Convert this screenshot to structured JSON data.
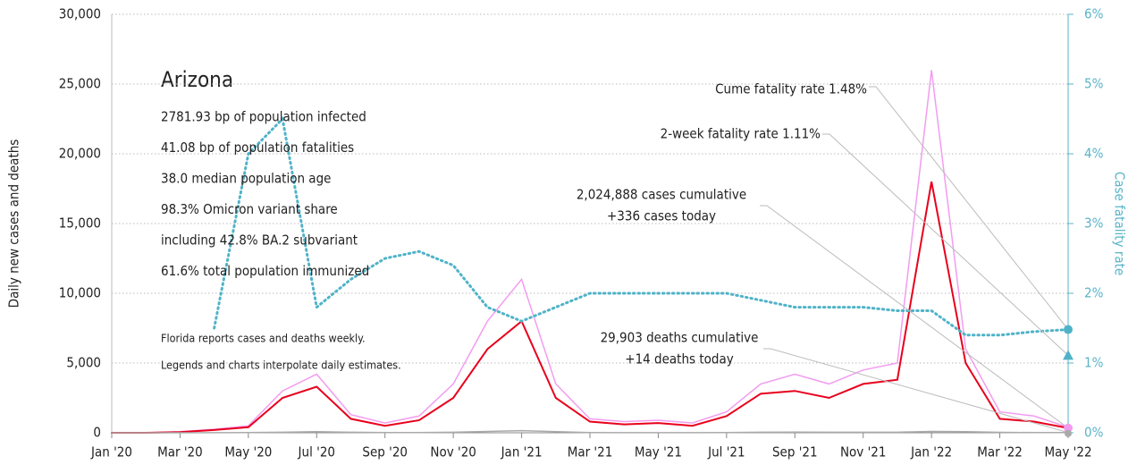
{
  "chart_data": {
    "type": "line",
    "x": [
      "2020-01",
      "2020-02",
      "2020-03",
      "2020-04",
      "2020-05",
      "2020-06",
      "2020-07",
      "2020-08",
      "2020-09",
      "2020-10",
      "2020-11",
      "2020-12",
      "2021-01",
      "2021-02",
      "2021-03",
      "2021-04",
      "2021-05",
      "2021-06",
      "2021-07",
      "2021-08",
      "2021-09",
      "2021-10",
      "2021-11",
      "2021-12",
      "2022-01",
      "2022-02",
      "2022-03",
      "2022-04",
      "2022-05"
    ],
    "series": [
      {
        "color": "#f29cf0",
        "values": [
          0,
          0,
          80,
          250,
          500,
          3000,
          4200,
          1300,
          700,
          1200,
          3500,
          8000,
          11000,
          3500,
          1000,
          800,
          900,
          700,
          1500,
          3500,
          4200,
          3500,
          4500,
          5000,
          26000,
          6000,
          1500,
          1200,
          400
        ]
      },
      {
        "color": "#e8001c",
        "values": [
          0,
          0,
          50,
          200,
          400,
          2500,
          3300,
          1000,
          500,
          900,
          2500,
          6000,
          8000,
          2500,
          800,
          600,
          700,
          500,
          1200,
          2800,
          3000,
          2500,
          3500,
          3800,
          18000,
          5000,
          1000,
          800,
          336
        ]
      },
      {
        "color": "#aaaaaa",
        "values": [
          0,
          0,
          2,
          10,
          15,
          40,
          80,
          40,
          15,
          20,
          40,
          100,
          150,
          80,
          20,
          10,
          10,
          8,
          15,
          40,
          50,
          40,
          40,
          40,
          100,
          80,
          30,
          15,
          14
        ]
      },
      {
        "color": "#4fb3c8",
        "axis": "y2",
        "dotted": true,
        "values": [
          null,
          null,
          null,
          1.5,
          4.0,
          4.5,
          1.8,
          2.2,
          2.5,
          2.6,
          2.4,
          1.8,
          1.6,
          1.8,
          2.0,
          2.0,
          2.0,
          2.0,
          2.0,
          1.9,
          1.8,
          1.8,
          1.8,
          1.75,
          1.75,
          1.4,
          1.4,
          1.45,
          1.48
        ]
      }
    ],
    "two_week_fatality_rate": 1.11,
    "xticks": [
      {
        "value": "2020-01",
        "label": "Jan '20"
      },
      {
        "value": "2020-03",
        "label": "Mar '20"
      },
      {
        "value": "2020-05",
        "label": "May '20"
      },
      {
        "value": "2020-07",
        "label": "Jul '20"
      },
      {
        "value": "2020-09",
        "label": "Sep '20"
      },
      {
        "value": "2020-11",
        "label": "Nov '20"
      },
      {
        "value": "2021-01",
        "label": "Jan '21"
      },
      {
        "value": "2021-03",
        "label": "Mar '21"
      },
      {
        "value": "2021-05",
        "label": "May '21"
      },
      {
        "value": "2021-07",
        "label": "Jul '21"
      },
      {
        "value": "2021-09",
        "label": "Sep '21"
      },
      {
        "value": "2021-11",
        "label": "Nov '21"
      },
      {
        "value": "2022-01",
        "label": "Jan '22"
      },
      {
        "value": "2022-03",
        "label": "Mar '22"
      },
      {
        "value": "2022-05",
        "label": "May '22"
      }
    ],
    "xlim": [
      "2020-01",
      "2022-05"
    ],
    "ylim": [
      0,
      30000
    ],
    "yticks": [
      0,
      {
        "value": 5000,
        "label": "5,000"
      },
      {
        "value": 10000,
        "label": "10,000"
      },
      {
        "value": 15000,
        "label": "15,000"
      },
      {
        "value": 20000,
        "label": "20,000"
      },
      {
        "value": 25000,
        "label": "25,000"
      },
      {
        "value": 30000,
        "label": "30,000"
      }
    ],
    "y2lim": [
      0,
      6
    ],
    "y2ticks": [
      {
        "value": 0,
        "label": "0%"
      },
      {
        "value": 1,
        "label": "1%"
      },
      {
        "value": 2,
        "label": "2%"
      },
      {
        "value": 3,
        "label": "3%"
      },
      {
        "value": 4,
        "label": "4%"
      },
      {
        "value": 5,
        "label": "5%"
      },
      {
        "value": 6,
        "label": "6%"
      }
    ],
    "ylabel": "Daily new cases and deaths",
    "y2label": "Case fatality rate",
    "grid": true,
    "title": "Arizona",
    "facts": [
      "2781.93 bp of population infected",
      "41.08 bp of population fatalities",
      "38.0 median population age",
      "98.3% Omicron variant share",
      "including 42.8% BA.2 subvariant",
      "61.6% total population immunized"
    ],
    "notes": [
      "Florida reports cases and deaths weekly.",
      "Legends and charts interpolate daily estimates."
    ],
    "annotations": [
      "Cume fatality rate 1.48%",
      "2-week fatality rate 1.11%",
      "2,024,888 cases cumulative",
      "+336 cases today",
      "29,903 deaths cumulative",
      "+14 deaths today"
    ]
  }
}
